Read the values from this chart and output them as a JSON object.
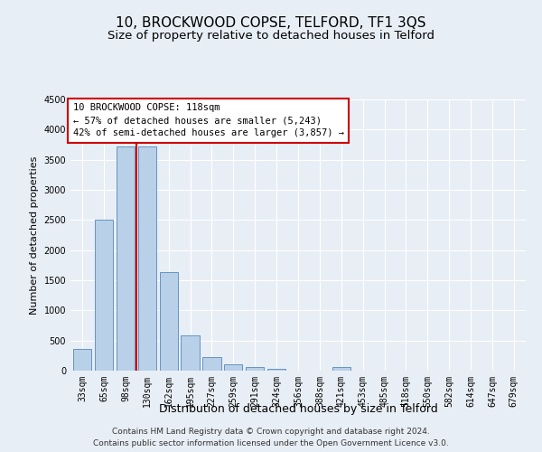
{
  "title": "10, BROCKWOOD COPSE, TELFORD, TF1 3QS",
  "subtitle": "Size of property relative to detached houses in Telford",
  "xlabel": "Distribution of detached houses by size in Telford",
  "ylabel": "Number of detached properties",
  "categories": [
    "33sqm",
    "65sqm",
    "98sqm",
    "130sqm",
    "162sqm",
    "195sqm",
    "227sqm",
    "259sqm",
    "291sqm",
    "324sqm",
    "356sqm",
    "388sqm",
    "421sqm",
    "453sqm",
    "485sqm",
    "518sqm",
    "550sqm",
    "582sqm",
    "614sqm",
    "647sqm",
    "679sqm"
  ],
  "values": [
    360,
    2510,
    3720,
    3720,
    1630,
    580,
    225,
    105,
    60,
    35,
    0,
    0,
    55,
    0,
    0,
    0,
    0,
    0,
    0,
    0,
    0
  ],
  "bar_color": "#b8d0e8",
  "bar_edge_color": "#5588bb",
  "vline_x_index": 3,
  "vline_color": "#cc0000",
  "annotation_line1": "10 BROCKWOOD COPSE: 118sqm",
  "annotation_line2": "← 57% of detached houses are smaller (5,243)",
  "annotation_line3": "42% of semi-detached houses are larger (3,857) →",
  "ylim": [
    0,
    4500
  ],
  "yticks": [
    0,
    500,
    1000,
    1500,
    2000,
    2500,
    3000,
    3500,
    4000,
    4500
  ],
  "bg_color": "#e8eef5",
  "plot_bg_color": "#e8eef5",
  "grid_color": "#ffffff",
  "footer": "Contains HM Land Registry data © Crown copyright and database right 2024.\nContains public sector information licensed under the Open Government Licence v3.0.",
  "title_fontsize": 11,
  "subtitle_fontsize": 9.5,
  "xlabel_fontsize": 9,
  "ylabel_fontsize": 8,
  "tick_fontsize": 7,
  "annotation_fontsize": 7.5,
  "footer_fontsize": 6.5
}
